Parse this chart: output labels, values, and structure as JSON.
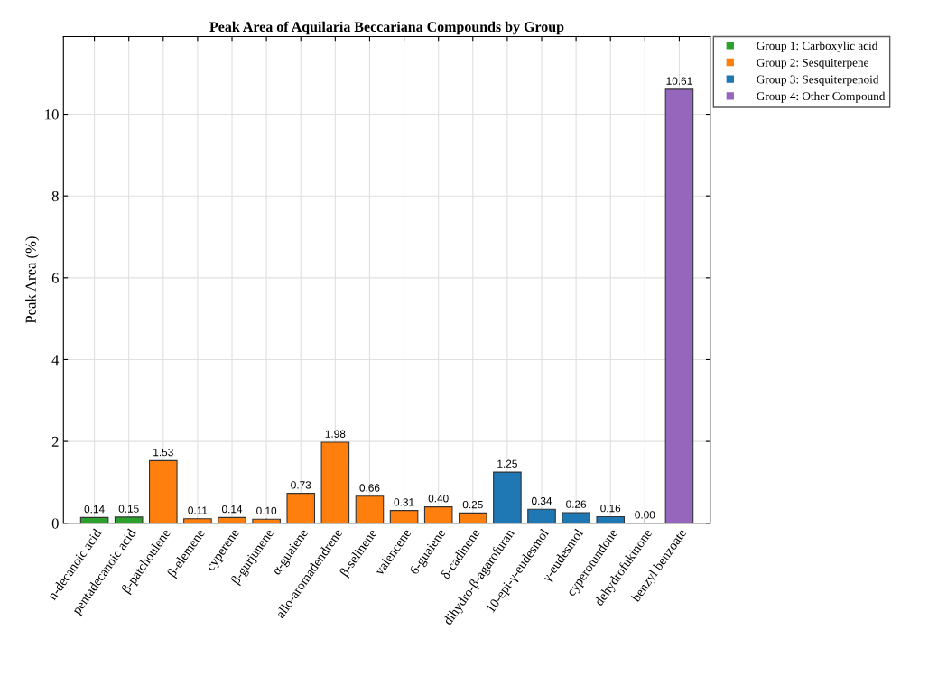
{
  "chart_data": {
    "type": "bar",
    "title": "Peak Area of Aquilaria Beccariana Compounds by Group",
    "ylabel": "Peak Area (%)",
    "categories": [
      "n-decanoic acid",
      "pentadecanoic acid",
      "β-patchoulene",
      "β-elemene",
      "cyperene",
      "β-gurjunene",
      "α-guaiene",
      "allo-aromadendrene",
      "β-selinene",
      "valencene",
      "6-guaiene",
      "δ-cadinene",
      "dihydro-β-agarofuran",
      "10-epi-γ-eudesmol",
      "γ-eudesmol",
      "cyperotundone",
      "dehydrofukinone",
      "benzyl benzoate"
    ],
    "series": [
      {
        "name": "Group 1: Carboxylic acid",
        "color": "#2ca02c",
        "values": [
          0.14,
          0.15,
          null,
          null,
          null,
          null,
          null,
          null,
          null,
          null,
          null,
          null,
          null,
          null,
          null,
          null,
          null,
          null
        ],
        "value_labels": [
          "0.14",
          "0.15",
          null,
          null,
          null,
          null,
          null,
          null,
          null,
          null,
          null,
          null,
          null,
          null,
          null,
          null,
          null,
          null
        ]
      },
      {
        "name": "Group 2: Sesquiterpene",
        "color": "#ff7f0e",
        "values": [
          null,
          null,
          1.53,
          0.11,
          0.14,
          0.1,
          0.73,
          1.98,
          0.66,
          0.31,
          0.4,
          0.25,
          null,
          null,
          null,
          null,
          null,
          null
        ],
        "value_labels": [
          null,
          null,
          "1.53",
          "0.11",
          "0.14",
          "0.10",
          "0.73",
          "1.98",
          "0.66",
          "0.31",
          "0.40",
          "0.25",
          null,
          null,
          null,
          null,
          null,
          null
        ]
      },
      {
        "name": "Group 3: Sesquiterpenoid",
        "color": "#1f77b4",
        "values": [
          null,
          null,
          null,
          null,
          null,
          null,
          null,
          null,
          null,
          null,
          null,
          null,
          1.25,
          0.34,
          0.26,
          0.16,
          0.0,
          null
        ],
        "value_labels": [
          null,
          null,
          null,
          null,
          null,
          null,
          null,
          null,
          null,
          null,
          null,
          null,
          "1.25",
          "0.34",
          "0.26",
          "0.16",
          "0.00",
          null
        ]
      },
      {
        "name": "Group 4: Other Compound",
        "color": "#9467bd",
        "values": [
          null,
          null,
          null,
          null,
          null,
          null,
          null,
          null,
          null,
          null,
          null,
          null,
          null,
          null,
          null,
          null,
          null,
          10.61
        ],
        "value_labels": [
          null,
          null,
          null,
          null,
          null,
          null,
          null,
          null,
          null,
          null,
          null,
          null,
          null,
          null,
          null,
          null,
          null,
          "10.61"
        ]
      }
    ],
    "ylim": [
      0,
      11.9
    ],
    "yticks": [
      0,
      2,
      4,
      6,
      8,
      10
    ],
    "grid": true,
    "legend": "top right"
  }
}
